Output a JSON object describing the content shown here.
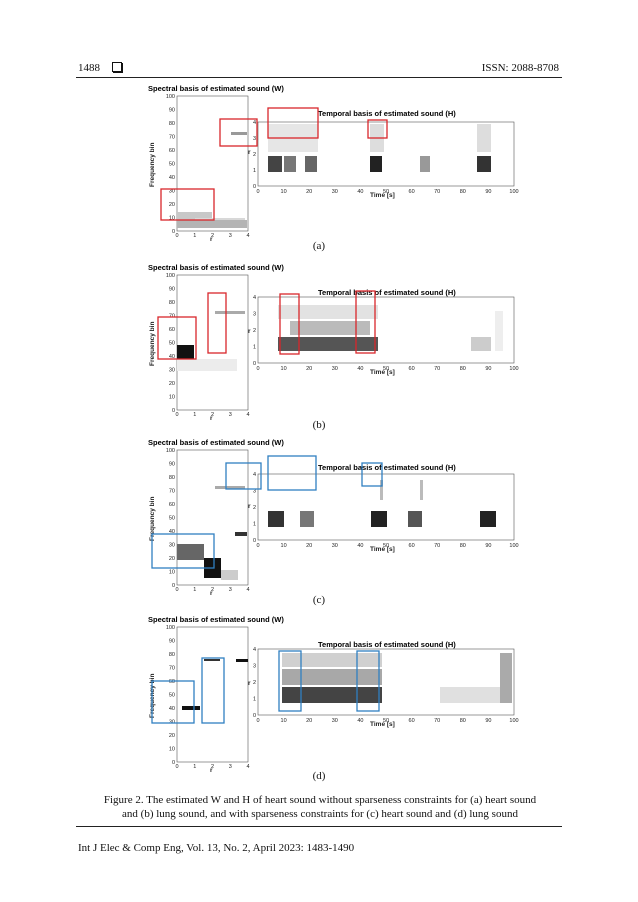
{
  "header": {
    "page_number": "1488",
    "journal_issn": "ISSN: 2088-8708"
  },
  "footer": {
    "citation": "Int J Elec & Comp Eng, Vol. 13, No. 2, April 2023: 1483-1490"
  },
  "figure": {
    "caption": "Figure 2. The estimated W and H of heart sound without sparseness constraints for (a) heart sound and (b) lung sound, and with sparseness constraints for (c) heart sound and (d) lung sound",
    "panels": [
      {
        "label": "(a)",
        "w_title": "Spectral basis of estimated sound (W)",
        "h_title": "Temporal basis of estimated sound (H)",
        "w_ylabel": "Frequency bin",
        "w_xlabel": "r",
        "h_xlabel": "Time [s]",
        "h_ylabel": "r",
        "highlight": "#d9262b"
      },
      {
        "label": "(b)",
        "w_title": "Spectral basis of estimated sound (W)",
        "h_title": "Temporal basis of estimated sound (H)",
        "w_ylabel": "Frequency bin",
        "w_xlabel": "r",
        "h_xlabel": "Time [s]",
        "h_ylabel": "r",
        "highlight": "#d9262b"
      },
      {
        "label": "(c)",
        "w_title": "Spectral basis of estimated sound (W)",
        "h_title": "Temporal basis of estimated sound (H)",
        "w_ylabel": "Frequency bin",
        "w_xlabel": "r",
        "h_xlabel": "Time [s]",
        "h_ylabel": "r",
        "highlight": "#2f7fc1"
      },
      {
        "label": "(d)",
        "w_title": "Spectral basis of estimated sound (W)",
        "h_title": "Temporal basis of estimated sound (H)",
        "w_ylabel": "Frequency bin",
        "w_xlabel": "r",
        "h_xlabel": "Time [s]",
        "h_ylabel": "r",
        "highlight": "#2f7fc1"
      }
    ],
    "w_yticks": [
      "0",
      "10",
      "20",
      "30",
      "40",
      "50",
      "60",
      "70",
      "80",
      "90",
      "100"
    ],
    "w_xticks": [
      "0",
      "1",
      "2",
      "3",
      "4"
    ],
    "h_yticks": [
      "0",
      "1",
      "2",
      "3",
      "4"
    ],
    "h_xticks": [
      "0",
      "10",
      "20",
      "30",
      "40",
      "50",
      "60",
      "70",
      "80",
      "90",
      "100"
    ]
  }
}
